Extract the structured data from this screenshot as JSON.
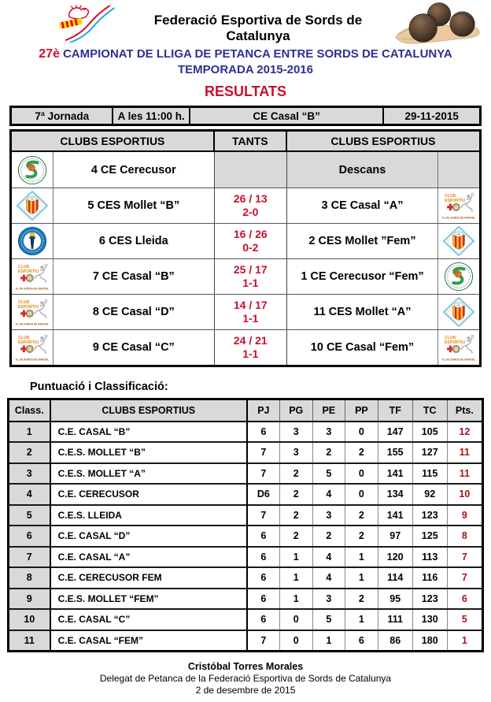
{
  "header": {
    "federation": "Federació Esportiva de Sords de Catalunya",
    "title_number": "27è",
    "title_rest": "CAMPIONAT DE LLIGA DE PETANCA ENTRE SORDS DE CATALUNYA",
    "title_line2": "TEMPORADA 2015-2016",
    "results_heading": "RESULTATS"
  },
  "jornada_bar": {
    "jornada": "7ª Jornada",
    "time": "A les 11:00 h.",
    "venue": "CE Casal “B”",
    "date": "29-11-2015"
  },
  "results_table": {
    "headers": [
      "CLUBS ESPORTIUS",
      "TANTS",
      "CLUBS ESPORTIUS"
    ],
    "rows": [
      {
        "home_logo": "cerecusor",
        "home": "4 CE Cerecusor",
        "tants": "",
        "record": "",
        "away": "Descans",
        "away_logo": "",
        "descans": true
      },
      {
        "home_logo": "mollet",
        "home": "5 CES Mollet “B”",
        "tants": "26 / 13",
        "record": "2-0",
        "away": "3 CE Casal “A”",
        "away_logo": "casal",
        "descans": false
      },
      {
        "home_logo": "lleida",
        "home": "6 CES Lleida",
        "tants": "16 / 26",
        "record": "0-2",
        "away": "2 CES Mollet ”Fem”",
        "away_logo": "mollet",
        "descans": false
      },
      {
        "home_logo": "casal",
        "home": "7 CE Casal “B”",
        "tants": "25 / 17",
        "record": "1-1",
        "away": "1 CE Cerecusor “Fem”",
        "away_logo": "cerecusor",
        "descans": false
      },
      {
        "home_logo": "casal",
        "home": "8 CE Casal “D”",
        "tants": "14 / 17",
        "record": "1-1",
        "away": "11 CES Mollet “A”",
        "away_logo": "mollet",
        "descans": false
      },
      {
        "home_logo": "casal",
        "home": "9 CE Casal “C”",
        "tants": "24 / 21",
        "record": "1-1",
        "away": "10 CE Casal “Fem”",
        "away_logo": "casal",
        "descans": false
      }
    ]
  },
  "classification": {
    "title": "Puntuació i Classificació:",
    "headers": [
      "Class.",
      "CLUBS ESPORTIUS",
      "PJ",
      "PG",
      "PE",
      "PP",
      "TF",
      "TC",
      "Pts."
    ],
    "rows": [
      [
        "1",
        "C.E. CASAL “B”",
        "6",
        "3",
        "3",
        "0",
        "147",
        "105",
        "12"
      ],
      [
        "2",
        "C.E.S. MOLLET “B”",
        "7",
        "3",
        "2",
        "2",
        "155",
        "127",
        "11"
      ],
      [
        "3",
        "C.E.S. MOLLET “A”",
        "7",
        "2",
        "5",
        "0",
        "141",
        "115",
        "11"
      ],
      [
        "4",
        "C.E. CERECUSOR",
        "D6",
        "2",
        "4",
        "0",
        "134",
        "92",
        "10"
      ],
      [
        "5",
        "C.E.S. LLEIDA",
        "7",
        "2",
        "3",
        "2",
        "141",
        "123",
        "9"
      ],
      [
        "6",
        "C.E. CASAL “D”",
        "6",
        "2",
        "2",
        "2",
        "97",
        "125",
        "8"
      ],
      [
        "7",
        "C.E. CASAL “A”",
        "6",
        "1",
        "4",
        "1",
        "120",
        "113",
        "7"
      ],
      [
        "8",
        "C.E. CERECUSOR FEM",
        "6",
        "1",
        "4",
        "1",
        "114",
        "116",
        "7"
      ],
      [
        "9",
        "C.E.S. MOLLET “FEM”",
        "6",
        "1",
        "3",
        "2",
        "95",
        "123",
        "6"
      ],
      [
        "10",
        "C.E. CASAL “C”",
        "6",
        "0",
        "5",
        "1",
        "111",
        "130",
        "5"
      ],
      [
        "11",
        "C.E. CASAL “FEM”",
        "7",
        "0",
        "1",
        "6",
        "86",
        "180",
        "1"
      ]
    ]
  },
  "footer": {
    "name": "Cristóbal Torres Morales",
    "role": "Delegat de Petanca de la Federació Esportiva de Sords de Catalunya",
    "date": "2 de desembre de 2015"
  },
  "icons": {
    "fesc": "federation-of-deaf-sports-catalonia-logo",
    "balls": "hand-holding-three-petanque-balls-photo",
    "cerecusor": "ce-cerecusor-club-crest",
    "mollet": "ces-mollet-club-crest",
    "lleida": "ces-lleida-club-crest",
    "casal": "ce-casal-club-crest"
  },
  "colors": {
    "title_blue": "#2d3092",
    "accent_red": "#c8102e",
    "points_red": "#b01116",
    "header_gray": "#d9d9d9"
  }
}
